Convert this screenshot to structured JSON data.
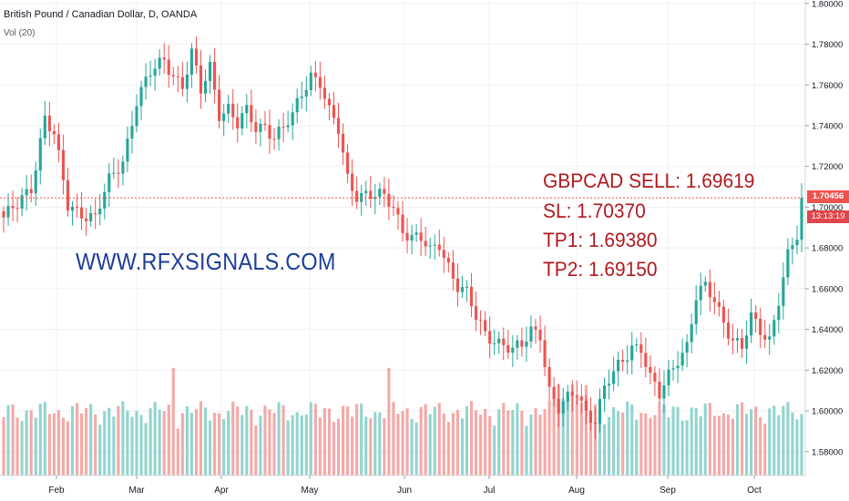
{
  "header": {
    "title": "British Pound / Canadian Dollar, D, OANDA",
    "volume_label": "Vol (20)"
  },
  "watermark": "WWW.RFXSIGNALS.COM",
  "signal": {
    "line1": "GBPCAD SELL: 1.69619",
    "line2": "SL: 1.70370",
    "line3": "TP1: 1.69380",
    "line4": "TP2: 1.69150"
  },
  "price_badge": {
    "price": "1.70456",
    "countdown": "13:13:19"
  },
  "colors": {
    "up": "#26a69a",
    "down": "#ef5350",
    "up_volume": "#93d4cf",
    "down_volume": "#f5a9a7",
    "grid": "#eef0f3",
    "last_price_line": "#ef5350"
  },
  "chart_data": {
    "type": "candlestick",
    "title": "British Pound / Canadian Dollar, D, OANDA",
    "y_ticks": [
      "1.58000",
      "1.60000",
      "1.62000",
      "1.64000",
      "1.66000",
      "1.68000",
      "1.70000",
      "1.72000",
      "1.74000",
      "1.76000",
      "1.78000",
      "1.80000"
    ],
    "ylim": [
      1.5683,
      1.8017
    ],
    "x_ticks": [
      "Feb",
      "Mar",
      "Apr",
      "May",
      "Jun",
      "Jul",
      "Aug",
      "Sep",
      "Oct"
    ],
    "last_price": 1.70456,
    "grid": true,
    "ohlc_anchors": [
      [
        0,
        1.695
      ],
      [
        3,
        1.7
      ],
      [
        6,
        1.71
      ],
      [
        9,
        1.745
      ],
      [
        11,
        1.735
      ],
      [
        14,
        1.7
      ],
      [
        17,
        1.698
      ],
      [
        20,
        1.695
      ],
      [
        23,
        1.712
      ],
      [
        26,
        1.723
      ],
      [
        29,
        1.753
      ],
      [
        32,
        1.765
      ],
      [
        35,
        1.772
      ],
      [
        37,
        1.766
      ],
      [
        39,
        1.76
      ],
      [
        41,
        1.775
      ],
      [
        43,
        1.756
      ],
      [
        45,
        1.769
      ],
      [
        47,
        1.747
      ],
      [
        49,
        1.749
      ],
      [
        51,
        1.74
      ],
      [
        53,
        1.746
      ],
      [
        55,
        1.739
      ],
      [
        57,
        1.741
      ],
      [
        59,
        1.735
      ],
      [
        61,
        1.738
      ],
      [
        63,
        1.744
      ],
      [
        65,
        1.756
      ],
      [
        67,
        1.766
      ],
      [
        69,
        1.762
      ],
      [
        71,
        1.746
      ],
      [
        73,
        1.737
      ],
      [
        75,
        1.714
      ],
      [
        77,
        1.707
      ],
      [
        79,
        1.707
      ],
      [
        81,
        1.705
      ],
      [
        83,
        1.704
      ],
      [
        85,
        1.7
      ],
      [
        87,
        1.69
      ],
      [
        89,
        1.686
      ],
      [
        91,
        1.684
      ],
      [
        93,
        1.677
      ],
      [
        95,
        1.682
      ],
      [
        97,
        1.672
      ],
      [
        99,
        1.662
      ],
      [
        101,
        1.657
      ],
      [
        103,
        1.645
      ],
      [
        105,
        1.638
      ],
      [
        107,
        1.636
      ],
      [
        109,
        1.633
      ],
      [
        111,
        1.629
      ],
      [
        113,
        1.631
      ],
      [
        115,
        1.64
      ],
      [
        117,
        1.639
      ],
      [
        119,
        1.61
      ],
      [
        121,
        1.6
      ],
      [
        123,
        1.605
      ],
      [
        125,
        1.61
      ],
      [
        127,
        1.6
      ],
      [
        129,
        1.596
      ],
      [
        131,
        1.61
      ],
      [
        133,
        1.618
      ],
      [
        135,
        1.625
      ],
      [
        137,
        1.633
      ],
      [
        139,
        1.631
      ],
      [
        141,
        1.615
      ],
      [
        143,
        1.607
      ],
      [
        145,
        1.618
      ],
      [
        147,
        1.627
      ],
      [
        149,
        1.632
      ],
      [
        151,
        1.655
      ],
      [
        153,
        1.66
      ],
      [
        155,
        1.655
      ],
      [
        157,
        1.645
      ],
      [
        159,
        1.635
      ],
      [
        161,
        1.63
      ],
      [
        163,
        1.645
      ],
      [
        165,
        1.64
      ],
      [
        167,
        1.636
      ],
      [
        169,
        1.655
      ],
      [
        171,
        1.675
      ],
      [
        173,
        1.685
      ],
      [
        174,
        1.704
      ]
    ],
    "volume_range": [
      0,
      1
    ]
  }
}
